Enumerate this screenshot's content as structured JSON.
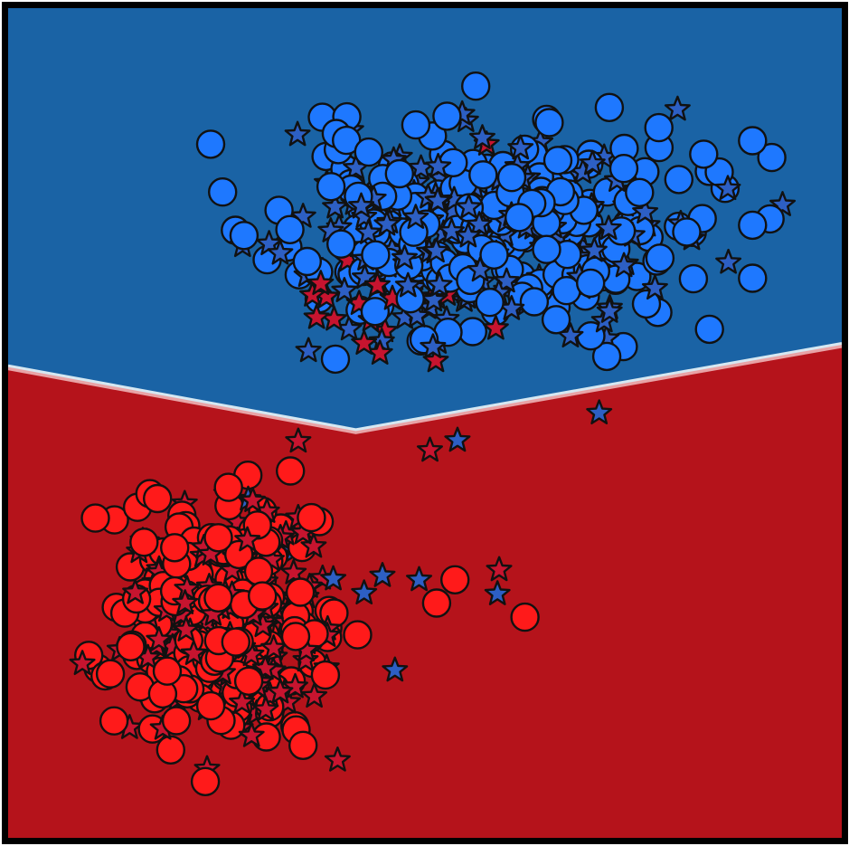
{
  "chart_data": {
    "type": "scatter",
    "title": "",
    "xlabel": "",
    "ylabel": "",
    "xlim": [
      0,
      100
    ],
    "ylim": [
      0,
      100
    ],
    "grid": false,
    "legend": "none",
    "colors": {
      "region_blue": "#1a63a5",
      "region_red": "#b5131b",
      "boundary_light": "#d6e8f2",
      "point_blue": "#1e78ff",
      "point_red": "#ff1a1a",
      "star_blue": "#2d5fc4",
      "star_red": "#c7142f",
      "edge": "#111111",
      "frame": "#000000"
    },
    "decision_boundary": [
      [
        0,
        56.9
      ],
      [
        41.7,
        49.2
      ],
      [
        100,
        59.6
      ]
    ],
    "regions": [
      {
        "class": "blue",
        "side": "above-boundary"
      },
      {
        "class": "red",
        "side": "below-boundary"
      }
    ],
    "clusters": [
      {
        "class": "blue",
        "marker": "circle",
        "cx": 56.8,
        "cy": 73.3,
        "sx": 12.5,
        "sy": 6.0,
        "n": 230,
        "seed": 11
      },
      {
        "class": "blue",
        "marker": "star",
        "cx": 56.5,
        "cy": 73.0,
        "sx": 11.5,
        "sy": 5.5,
        "n": 190,
        "seed": 29
      },
      {
        "class": "red",
        "marker": "circle",
        "cx": 25.8,
        "cy": 25.5,
        "sx": 6.2,
        "sy": 7.2,
        "n": 220,
        "seed": 47
      },
      {
        "class": "red",
        "marker": "star",
        "cx": 26.0,
        "cy": 26.0,
        "sx": 6.0,
        "sy": 6.8,
        "n": 180,
        "seed": 83
      }
    ],
    "extra_points": [
      {
        "class": "red",
        "marker": "star",
        "x": 57.4,
        "y": 83.6
      },
      {
        "class": "red",
        "marker": "star",
        "x": 49.2,
        "y": 71.8
      },
      {
        "class": "red",
        "marker": "star",
        "x": 36.3,
        "y": 69.4
      },
      {
        "class": "red",
        "marker": "star",
        "x": 40.7,
        "y": 69.6
      },
      {
        "class": "red",
        "marker": "star",
        "x": 37.5,
        "y": 66.8
      },
      {
        "class": "red",
        "marker": "star",
        "x": 44.3,
        "y": 66.6
      },
      {
        "class": "red",
        "marker": "star",
        "x": 46.1,
        "y": 65.0
      },
      {
        "class": "red",
        "marker": "star",
        "x": 36.5,
        "y": 65.4
      },
      {
        "class": "red",
        "marker": "star",
        "x": 38.2,
        "y": 65.2
      },
      {
        "class": "red",
        "marker": "star",
        "x": 52.7,
        "y": 65.5
      },
      {
        "class": "red",
        "marker": "star",
        "x": 62.6,
        "y": 65.2
      },
      {
        "class": "red",
        "marker": "star",
        "x": 50.8,
        "y": 65.2
      },
      {
        "class": "red",
        "marker": "star",
        "x": 42.1,
        "y": 64.4
      },
      {
        "class": "red",
        "marker": "star",
        "x": 37.0,
        "y": 62.7
      },
      {
        "class": "red",
        "marker": "star",
        "x": 39.1,
        "y": 62.5
      },
      {
        "class": "red",
        "marker": "star",
        "x": 43.5,
        "y": 62.4
      },
      {
        "class": "red",
        "marker": "star",
        "x": 58.5,
        "y": 61.4
      },
      {
        "class": "red",
        "marker": "star",
        "x": 45.2,
        "y": 61.1
      },
      {
        "class": "red",
        "marker": "star",
        "x": 42.7,
        "y": 59.6
      },
      {
        "class": "red",
        "marker": "star",
        "x": 44.6,
        "y": 58.4
      },
      {
        "class": "red",
        "marker": "star",
        "x": 51.3,
        "y": 57.5
      },
      {
        "class": "blue",
        "marker": "star",
        "x": 80.3,
        "y": 87.8
      },
      {
        "class": "blue",
        "marker": "star",
        "x": 31.3,
        "y": 71.6
      },
      {
        "class": "blue",
        "marker": "star",
        "x": 92.9,
        "y": 76.3
      },
      {
        "class": "blue",
        "marker": "star",
        "x": 70.9,
        "y": 51.2
      },
      {
        "class": "red",
        "marker": "star",
        "x": 34.8,
        "y": 47.8
      },
      {
        "class": "red",
        "marker": "star",
        "x": 50.6,
        "y": 46.7
      },
      {
        "class": "blue",
        "marker": "star",
        "x": 53.9,
        "y": 47.9
      },
      {
        "class": "red",
        "marker": "star",
        "x": 58.9,
        "y": 32.3
      },
      {
        "class": "blue",
        "marker": "star",
        "x": 58.7,
        "y": 29.4
      },
      {
        "class": "blue",
        "marker": "star",
        "x": 46.4,
        "y": 20.2
      },
      {
        "class": "blue",
        "marker": "star",
        "x": 49.3,
        "y": 31.1
      },
      {
        "class": "blue",
        "marker": "star",
        "x": 44.9,
        "y": 31.6
      },
      {
        "class": "blue",
        "marker": "star",
        "x": 42.7,
        "y": 29.5
      },
      {
        "class": "blue",
        "marker": "star",
        "x": 34.3,
        "y": 34.6
      },
      {
        "class": "blue",
        "marker": "star",
        "x": 28.8,
        "y": 40.8
      },
      {
        "class": "blue",
        "marker": "star",
        "x": 39.0,
        "y": 31.2
      },
      {
        "class": "red",
        "marker": "circle",
        "x": 62.0,
        "y": 26.6
      },
      {
        "class": "red",
        "marker": "circle",
        "x": 53.6,
        "y": 31.1
      },
      {
        "class": "red",
        "marker": "circle",
        "x": 51.4,
        "y": 28.3
      },
      {
        "class": "red",
        "marker": "circle",
        "x": 10.8,
        "y": 20.4
      },
      {
        "class": "red",
        "marker": "circle",
        "x": 34.4,
        "y": 13.5
      },
      {
        "class": "red",
        "marker": "circle",
        "x": 19.5,
        "y": 10.6
      },
      {
        "class": "red",
        "marker": "star",
        "x": 8.9,
        "y": 21.0
      },
      {
        "class": "red",
        "marker": "star",
        "x": 15.7,
        "y": 34.5
      },
      {
        "class": "red",
        "marker": "star",
        "x": 29.2,
        "y": 12.3
      },
      {
        "class": "blue",
        "marker": "circle",
        "x": 91.6,
        "y": 82.0
      },
      {
        "class": "blue",
        "marker": "circle",
        "x": 91.4,
        "y": 74.6
      },
      {
        "class": "blue",
        "marker": "circle",
        "x": 33.8,
        "y": 73.3
      },
      {
        "class": "blue",
        "marker": "circle",
        "x": 56.1,
        "y": 90.6
      },
      {
        "class": "blue",
        "marker": "circle",
        "x": 64.6,
        "y": 86.6
      },
      {
        "class": "blue",
        "marker": "circle",
        "x": 73.9,
        "y": 83.1
      },
      {
        "class": "blue",
        "marker": "circle",
        "x": 73.8,
        "y": 59.2
      },
      {
        "class": "blue",
        "marker": "circle",
        "x": 69.9,
        "y": 60.5
      }
    ]
  }
}
